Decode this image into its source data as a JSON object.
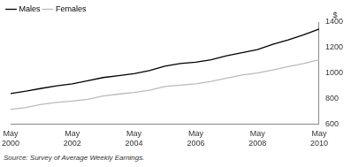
{
  "chart_data": {
    "type": "line",
    "y_label": "$",
    "note": "Source: Survey of Average Weekly Earnings.",
    "categories": [
      "May 2000",
      null,
      null,
      null,
      "May 2002",
      null,
      null,
      null,
      "May 2004",
      null,
      null,
      null,
      "May 2006",
      null,
      null,
      null,
      "May 2008",
      null,
      null,
      null,
      "May 2010"
    ],
    "series": [
      {
        "name": "Males",
        "color": "#000000",
        "values": [
          840,
          858,
          880,
          900,
          915,
          940,
          965,
          980,
          995,
          1020,
          1055,
          1075,
          1085,
          1105,
          1135,
          1160,
          1185,
          1225,
          1260,
          1300,
          1345
        ]
      },
      {
        "name": "Females",
        "color": "#bbbbbb",
        "values": [
          715,
          730,
          755,
          770,
          780,
          795,
          820,
          835,
          848,
          865,
          895,
          905,
          915,
          935,
          960,
          985,
          1000,
          1025,
          1050,
          1075,
          1105
        ]
      }
    ],
    "ylim": [
      600,
      1400
    ],
    "yticks": [
      600,
      800,
      1000,
      1200,
      1400
    ],
    "grid": false,
    "legend": "upper left"
  }
}
